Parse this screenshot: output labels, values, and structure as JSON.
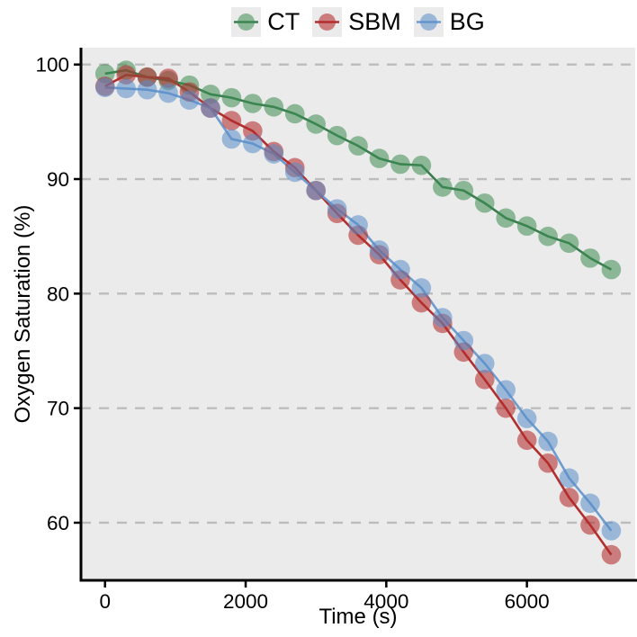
{
  "figure": {
    "background": "#ffffff",
    "panel_background": "#ebebeb",
    "gridline_color": "#bcbcbc",
    "axis_color": "#000000"
  },
  "chart_data": {
    "type": "line",
    "title": "",
    "xlabel": "Time (s)",
    "ylabel": "Oxygen Saturation (%)",
    "legend_position": "top-center",
    "grid": "horizontal-dashed",
    "xticks": [
      0,
      2000,
      4000,
      6000
    ],
    "yticks": [
      100,
      90,
      80,
      70,
      60
    ],
    "xlim": [
      -342,
      7540
    ],
    "ylim": [
      54.97,
      101.47
    ],
    "x": [
      0,
      300,
      600,
      900,
      1200,
      1500,
      1800,
      2100,
      2400,
      2700,
      3000,
      3300,
      3600,
      3900,
      4200,
      4500,
      4800,
      5100,
      5400,
      5700,
      6000,
      6300,
      6600,
      6900,
      7200
    ],
    "series": [
      {
        "name": "CT",
        "line_color": "#3b7d50",
        "marker_color": "rgba(60,140,80,0.55)",
        "values": [
          99.2,
          99.5,
          98.9,
          98.6,
          98.2,
          97.4,
          97.1,
          96.6,
          96.3,
          95.7,
          94.8,
          93.8,
          92.9,
          91.8,
          91.3,
          91.2,
          89.3,
          89.0,
          87.9,
          86.6,
          85.9,
          85.0,
          84.4,
          83.1,
          82.1
        ]
      },
      {
        "name": "SBM",
        "line_color": "#b22f2f",
        "marker_color": "rgba(180,45,45,0.58)",
        "values": [
          98.1,
          99.1,
          98.9,
          98.8,
          97.6,
          96.2,
          95.1,
          94.2,
          92.4,
          91.0,
          89.0,
          87.0,
          85.1,
          83.4,
          81.2,
          79.2,
          77.4,
          74.9,
          72.5,
          70.0,
          67.2,
          65.2,
          62.2,
          59.8,
          57.2
        ]
      },
      {
        "name": "BG",
        "line_color": "#6e9cce",
        "marker_color": "rgba(90,140,200,0.55)",
        "values": [
          98.0,
          97.9,
          97.8,
          97.5,
          96.9,
          96.2,
          93.5,
          93.1,
          92.2,
          90.6,
          89.0,
          87.4,
          86.0,
          83.8,
          82.1,
          80.5,
          77.9,
          75.9,
          73.9,
          71.6,
          69.1,
          67.1,
          63.9,
          61.7,
          59.3
        ]
      }
    ]
  }
}
